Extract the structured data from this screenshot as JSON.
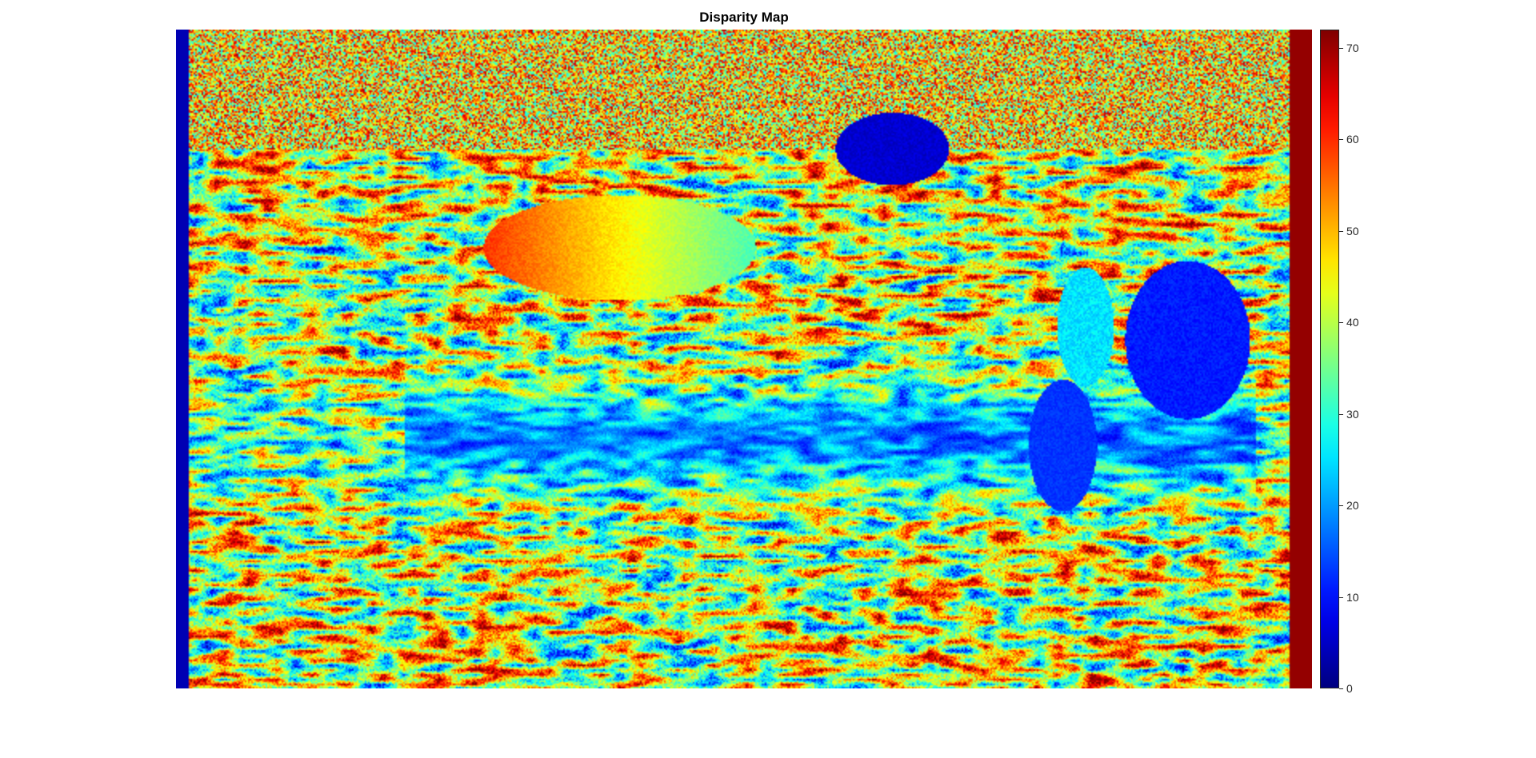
{
  "title": "Disparity Map",
  "colormap": "jet",
  "colorbar": {
    "range": [
      0,
      72
    ],
    "ticks": [
      {
        "value": 0,
        "label": "0"
      },
      {
        "value": 10,
        "label": "10"
      },
      {
        "value": 20,
        "label": "20"
      },
      {
        "value": 30,
        "label": "30"
      },
      {
        "value": 40,
        "label": "40"
      },
      {
        "value": 50,
        "label": "50"
      },
      {
        "value": 60,
        "label": "60"
      },
      {
        "value": 70,
        "label": "70"
      }
    ]
  },
  "colors": {
    "background": "#ffffff",
    "jet_low": "#00008f",
    "jet_high": "#800000"
  }
}
